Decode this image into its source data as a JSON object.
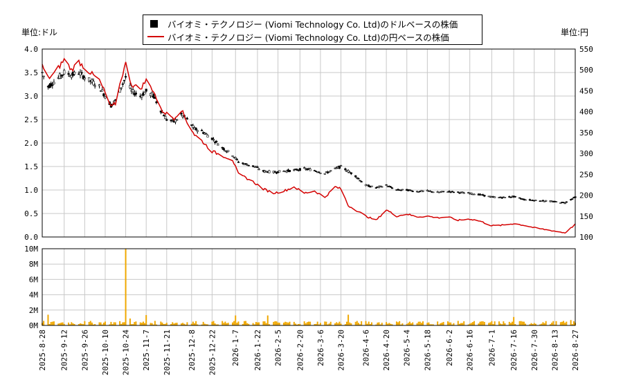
{
  "chart_data": [
    {
      "type": "line",
      "title": "",
      "legend": [
        {
          "label": "バイオミ・テクノロジー (Viomi Technology Co. Ltd)のドルベースの株価",
          "color": "#000000",
          "marker": "square"
        },
        {
          "label": "バイオミ・テクノロジー (Viomi Technology Co. Ltd)の円ベースの株価",
          "color": "#d40000",
          "marker": "line"
        }
      ],
      "legend_position": "top-center",
      "y_left_unit": "単位:ドル",
      "y_right_unit": "単位:円",
      "y_left_ticks": [
        "0.0",
        "0.5",
        "1.0",
        "1.5",
        "2.0",
        "2.5",
        "3.0",
        "3.5",
        "4.0"
      ],
      "y_left_lim": [
        0,
        4
      ],
      "y_right_ticks": [
        "100",
        "150",
        "200",
        "250",
        "300",
        "350",
        "400",
        "450",
        "500",
        "550"
      ],
      "y_right_lim": [
        100,
        550
      ],
      "grid": true,
      "series": [
        {
          "name": "バイオミ・テクノロジー (Viomi Technology Co. Ltd)のドルベースの株価",
          "axis": "left",
          "x": [
            "2025-08-28",
            "2025-09-01",
            "2025-09-05",
            "2025-09-12",
            "2025-09-17",
            "2025-09-22",
            "2025-09-26",
            "2025-10-01",
            "2025-10-06",
            "2025-10-10",
            "2025-10-14",
            "2025-10-17",
            "2025-10-21",
            "2025-10-24",
            "2025-10-28",
            "2025-11-03",
            "2025-11-07",
            "2025-11-12",
            "2025-11-17",
            "2025-11-21",
            "2025-11-26",
            "2025-12-01",
            "2025-12-05",
            "2025-12-10",
            "2025-12-15",
            "2025-12-22",
            "2025-12-29",
            "2026-01-05",
            "2026-01-09",
            "2026-01-14",
            "2026-01-20",
            "2026-01-26",
            "2026-02-02",
            "2026-02-09",
            "2026-02-16",
            "2026-02-23",
            "2026-03-02",
            "2026-03-09",
            "2026-03-16",
            "2026-03-20",
            "2026-03-25",
            "2026-03-30",
            "2026-04-06",
            "2026-04-13",
            "2026-04-20",
            "2026-04-27",
            "2026-05-04",
            "2026-05-11",
            "2026-05-18",
            "2026-05-25",
            "2026-06-01",
            "2026-06-08",
            "2026-06-16",
            "2026-06-23",
            "2026-07-01",
            "2026-07-08",
            "2026-07-16",
            "2026-07-23",
            "2026-07-30",
            "2026-08-06",
            "2026-08-13",
            "2026-08-20",
            "2026-08-27"
          ],
          "values": [
            3.5,
            3.2,
            3.3,
            3.5,
            3.45,
            3.5,
            3.4,
            3.3,
            3.2,
            3.0,
            2.8,
            2.9,
            3.2,
            3.4,
            3.1,
            3.0,
            3.1,
            3.0,
            2.7,
            2.5,
            2.45,
            2.6,
            2.5,
            2.3,
            2.25,
            2.1,
            1.9,
            1.75,
            1.6,
            1.55,
            1.5,
            1.4,
            1.38,
            1.4,
            1.42,
            1.45,
            1.42,
            1.35,
            1.45,
            1.5,
            1.4,
            1.3,
            1.1,
            1.05,
            1.1,
            1.0,
            1.0,
            0.97,
            0.98,
            0.95,
            0.97,
            0.95,
            0.93,
            0.9,
            0.85,
            0.84,
            0.86,
            0.8,
            0.78,
            0.77,
            0.75,
            0.73,
            0.85
          ]
        },
        {
          "name": "バイオミ・テクノロジー (Viomi Technology Co. Ltd)の円ベースの株価",
          "axis": "right",
          "x": [
            "2025-08-28",
            "2025-09-01",
            "2025-09-05",
            "2025-09-12",
            "2025-09-17",
            "2025-09-22",
            "2025-09-26",
            "2025-10-01",
            "2025-10-06",
            "2025-10-10",
            "2025-10-14",
            "2025-10-17",
            "2025-10-21",
            "2025-10-24",
            "2025-10-28",
            "2025-11-03",
            "2025-11-07",
            "2025-11-12",
            "2025-11-17",
            "2025-11-21",
            "2025-11-26",
            "2025-12-01",
            "2025-12-05",
            "2025-12-10",
            "2025-12-15",
            "2025-12-22",
            "2025-12-29",
            "2026-01-05",
            "2026-01-09",
            "2026-01-14",
            "2026-01-20",
            "2026-01-26",
            "2026-02-02",
            "2026-02-09",
            "2026-02-16",
            "2026-02-23",
            "2026-03-02",
            "2026-03-09",
            "2026-03-16",
            "2026-03-20",
            "2026-03-25",
            "2026-03-30",
            "2026-04-06",
            "2026-04-13",
            "2026-04-20",
            "2026-04-27",
            "2026-05-04",
            "2026-05-11",
            "2026-05-18",
            "2026-05-25",
            "2026-06-01",
            "2026-06-08",
            "2026-06-16",
            "2026-06-23",
            "2026-07-01",
            "2026-07-08",
            "2026-07-16",
            "2026-07-23",
            "2026-07-30",
            "2026-08-06",
            "2026-08-13",
            "2026-08-20",
            "2026-08-27"
          ],
          "values": [
            510,
            480,
            490,
            525,
            500,
            520,
            505,
            490,
            475,
            445,
            410,
            420,
            480,
            515,
            465,
            455,
            475,
            450,
            405,
            395,
            385,
            405,
            375,
            345,
            330,
            305,
            295,
            285,
            250,
            242,
            230,
            215,
            205,
            210,
            220,
            205,
            210,
            195,
            220,
            215,
            175,
            165,
            150,
            140,
            165,
            150,
            155,
            148,
            150,
            146,
            148,
            140,
            143,
            138,
            127,
            128,
            132,
            128,
            122,
            118,
            114,
            110,
            130
          ]
        },
        {
          "name": "",
          "type": "bar",
          "x_label_ticks": [
            "2025-8-28",
            "2025-9-12",
            "2025-9-26",
            "2025-10-10",
            "2025-10-24",
            "2025-11-7",
            "2025-11-21",
            "2025-12-8",
            "2025-12-22",
            "2026-1-7",
            "2026-1-22",
            "2026-2-5",
            "2026-2-20",
            "2026-3-6",
            "2026-3-20",
            "2026-4-6",
            "2026-4-20",
            "2026-5-4",
            "2026-5-18",
            "2026-6-2",
            "2026-6-16",
            "2026-7-1",
            "2026-7-16",
            "2026-7-30",
            "2026-8-13",
            "2026-8-27"
          ],
          "y_ticks": [
            "0M",
            "2M",
            "4M",
            "6M",
            "8M",
            "10M"
          ],
          "y_lim": [
            0,
            10000000
          ],
          "spikes": [
            {
              "date": "2025-09-01",
              "value": 1400000
            },
            {
              "date": "2025-10-24",
              "value": 10000000
            },
            {
              "date": "2025-10-27",
              "value": 900000
            },
            {
              "date": "2025-11-07",
              "value": 1350000
            },
            {
              "date": "2026-01-07",
              "value": 1300000
            },
            {
              "date": "2026-01-29",
              "value": 1300000
            },
            {
              "date": "2026-03-25",
              "value": 1400000
            },
            {
              "date": "2026-07-16",
              "value": 1100000
            },
            {
              "date": "2026-08-24",
              "value": 700000
            }
          ],
          "baseline_value": 350000
        }
      ]
    }
  ]
}
